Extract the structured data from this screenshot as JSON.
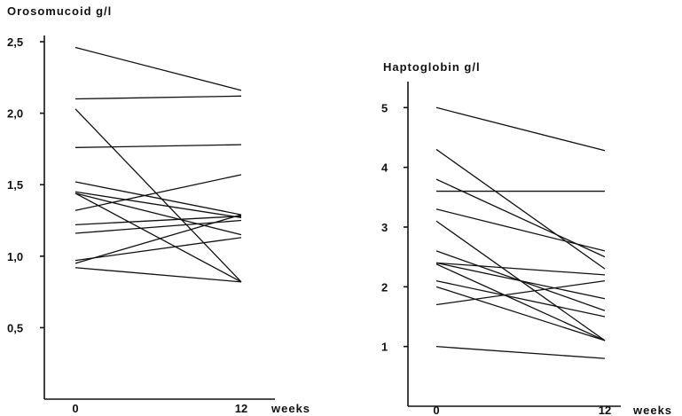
{
  "chart_data": [
    {
      "type": "line",
      "title": "Orosomucoid g/l",
      "x_tick_labels": [
        "0",
        "12"
      ],
      "x_unit_label": "weeks",
      "y_tick_labels": [
        "0,5",
        "1,0",
        "1,5",
        "2,0",
        "2,5"
      ],
      "y_ticks": [
        0.5,
        1.0,
        1.5,
        2.0,
        2.5
      ],
      "x": [
        0,
        12
      ],
      "ylim": [
        0,
        2.55
      ],
      "grid": false,
      "series": [
        {
          "values": [
            2.46,
            2.16
          ]
        },
        {
          "values": [
            2.1,
            2.12
          ]
        },
        {
          "values": [
            2.03,
            0.82
          ]
        },
        {
          "values": [
            1.76,
            1.78
          ]
        },
        {
          "values": [
            1.52,
            1.29
          ]
        },
        {
          "values": [
            1.45,
            1.27
          ]
        },
        {
          "values": [
            1.44,
            1.15
          ]
        },
        {
          "values": [
            1.44,
            0.82
          ]
        },
        {
          "values": [
            1.32,
            1.57
          ]
        },
        {
          "values": [
            1.22,
            1.28
          ]
        },
        {
          "values": [
            1.16,
            1.25
          ]
        },
        {
          "values": [
            0.97,
            1.13
          ]
        },
        {
          "values": [
            0.95,
            1.29
          ]
        },
        {
          "values": [
            0.92,
            0.82
          ]
        }
      ]
    },
    {
      "type": "line",
      "title": "Haptoglobin g/l",
      "x_tick_labels": [
        "0",
        "12"
      ],
      "x_unit_label": "weeks",
      "y_tick_labels": [
        "1",
        "2",
        "3",
        "4",
        "5"
      ],
      "y_ticks": [
        1,
        2,
        3,
        4,
        5
      ],
      "x": [
        0,
        12
      ],
      "ylim": [
        0,
        5.45
      ],
      "grid": false,
      "series": [
        {
          "values": [
            5.0,
            4.28
          ]
        },
        {
          "values": [
            4.3,
            2.3
          ]
        },
        {
          "values": [
            3.8,
            2.5
          ]
        },
        {
          "values": [
            3.6,
            3.6
          ]
        },
        {
          "values": [
            3.3,
            2.6
          ]
        },
        {
          "values": [
            3.1,
            1.1
          ]
        },
        {
          "values": [
            2.6,
            1.6
          ]
        },
        {
          "values": [
            2.4,
            2.2
          ]
        },
        {
          "values": [
            2.4,
            1.8
          ]
        },
        {
          "values": [
            2.38,
            1.1
          ]
        },
        {
          "values": [
            2.1,
            1.5
          ]
        },
        {
          "values": [
            2.0,
            1.1
          ]
        },
        {
          "values": [
            1.7,
            2.1
          ]
        },
        {
          "values": [
            1.0,
            0.8
          ]
        }
      ]
    }
  ]
}
